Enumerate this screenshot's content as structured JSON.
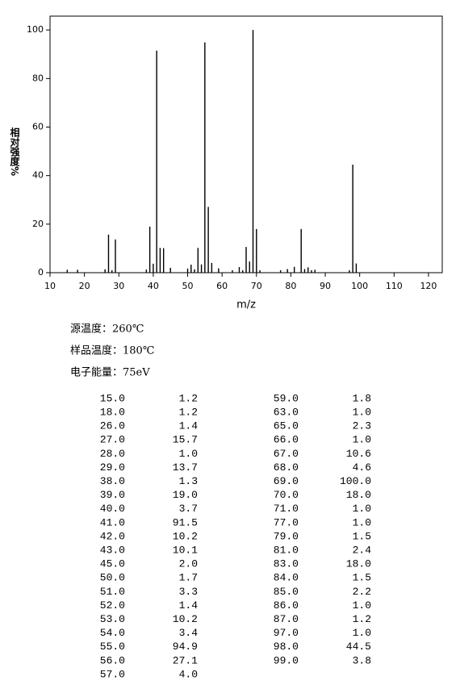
{
  "chart_data": {
    "type": "bar",
    "y_label": "相对强度%",
    "x_label": "m/z",
    "x": [
      15,
      18,
      26,
      27,
      28,
      29,
      38,
      39,
      40,
      41,
      42,
      43,
      45,
      50,
      51,
      52,
      53,
      54,
      55,
      56,
      57,
      59,
      63,
      65,
      66,
      67,
      68,
      69,
      70,
      71,
      77,
      79,
      81,
      83,
      84,
      85,
      86,
      87,
      97,
      98,
      99
    ],
    "values": [
      1.2,
      1.2,
      1.4,
      15.7,
      1.0,
      13.7,
      1.3,
      19.0,
      3.7,
      91.5,
      10.2,
      10.1,
      2.0,
      1.7,
      3.3,
      1.4,
      10.2,
      3.4,
      94.9,
      27.1,
      4.0,
      1.8,
      1.0,
      2.3,
      1.0,
      10.6,
      4.6,
      100.0,
      18.0,
      1.0,
      1.0,
      1.5,
      2.4,
      18.0,
      1.5,
      2.2,
      1.0,
      1.2,
      1.0,
      44.5,
      3.8
    ],
    "color": "#000000",
    "xlim": [
      10,
      124
    ],
    "xticks": [
      10,
      20,
      30,
      40,
      50,
      60,
      70,
      80,
      90,
      100,
      110,
      120
    ],
    "ylim": [
      0,
      105.7
    ],
    "yticks": [
      0,
      20,
      40,
      60,
      80,
      100
    ],
    "grid": false
  },
  "conditions": [
    "源温度：260℃",
    "样品温度：180℃",
    "电子能量：75eV"
  ],
  "table": {
    "rows": [
      [
        "15.0",
        "1.2"
      ],
      [
        "18.0",
        "1.2"
      ],
      [
        "26.0",
        "1.4"
      ],
      [
        "27.0",
        "15.7"
      ],
      [
        "28.0",
        "1.0"
      ],
      [
        "29.0",
        "13.7"
      ],
      [
        "38.0",
        "1.3"
      ],
      [
        "39.0",
        "19.0"
      ],
      [
        "40.0",
        "3.7"
      ],
      [
        "41.0",
        "91.5"
      ],
      [
        "42.0",
        "10.2"
      ],
      [
        "43.0",
        "10.1"
      ],
      [
        "45.0",
        "2.0"
      ],
      [
        "50.0",
        "1.7"
      ],
      [
        "51.0",
        "3.3"
      ],
      [
        "52.0",
        "1.4"
      ],
      [
        "53.0",
        "10.2"
      ],
      [
        "54.0",
        "3.4"
      ],
      [
        "55.0",
        "94.9"
      ],
      [
        "56.0",
        "27.1"
      ],
      [
        "57.0",
        "4.0"
      ],
      [
        "59.0",
        "1.8"
      ],
      [
        "63.0",
        "1.0"
      ],
      [
        "65.0",
        "2.3"
      ],
      [
        "66.0",
        "1.0"
      ],
      [
        "67.0",
        "10.6"
      ],
      [
        "68.0",
        "4.6"
      ],
      [
        "69.0",
        "100.0"
      ],
      [
        "70.0",
        "18.0"
      ],
      [
        "71.0",
        "1.0"
      ],
      [
        "77.0",
        "1.0"
      ],
      [
        "79.0",
        "1.5"
      ],
      [
        "81.0",
        "2.4"
      ],
      [
        "83.0",
        "18.0"
      ],
      [
        "84.0",
        "1.5"
      ],
      [
        "85.0",
        "2.2"
      ],
      [
        "86.0",
        "1.0"
      ],
      [
        "87.0",
        "1.2"
      ],
      [
        "97.0",
        "1.0"
      ],
      [
        "98.0",
        "44.5"
      ],
      [
        "99.0",
        "3.8"
      ]
    ]
  }
}
